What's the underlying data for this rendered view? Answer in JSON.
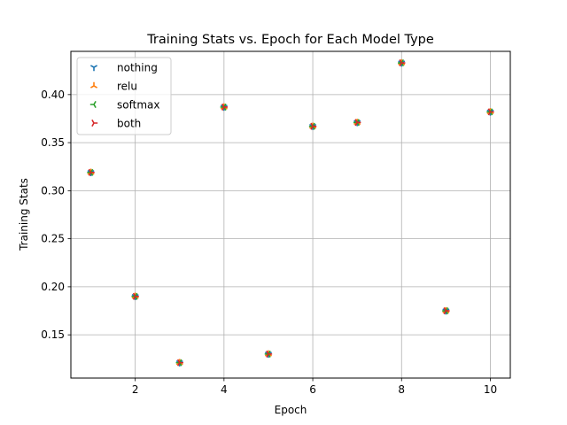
{
  "chart_data": {
    "type": "scatter",
    "title": "Training Stats vs. Epoch for Each Model Type",
    "xlabel": "Epoch",
    "ylabel": "Training Stats",
    "xlim": [
      0.55,
      10.45
    ],
    "ylim": [
      0.105,
      0.445
    ],
    "xticks": [
      2,
      4,
      6,
      8,
      10
    ],
    "yticks": [
      0.15,
      0.2,
      0.25,
      0.3,
      0.35,
      0.4
    ],
    "ytick_labels": [
      "0.15",
      "0.20",
      "0.25",
      "0.30",
      "0.35",
      "0.40"
    ],
    "grid": true,
    "legend_position": "top-left",
    "x": [
      1,
      2,
      3,
      4,
      5,
      6,
      7,
      8,
      9,
      10
    ],
    "series": [
      {
        "name": "nothing",
        "marker": "tri_down",
        "color": "#1f77b4",
        "values": [
          0.319,
          0.19,
          0.121,
          0.387,
          0.13,
          0.367,
          0.371,
          0.433,
          0.175,
          0.382
        ]
      },
      {
        "name": "relu",
        "marker": "tri_up",
        "color": "#ff7f0e",
        "values": [
          0.319,
          0.19,
          0.121,
          0.387,
          0.13,
          0.367,
          0.371,
          0.433,
          0.175,
          0.382
        ]
      },
      {
        "name": "softmax",
        "marker": "tri_left",
        "color": "#2ca02c",
        "values": [
          0.319,
          0.19,
          0.121,
          0.387,
          0.13,
          0.367,
          0.371,
          0.433,
          0.175,
          0.382
        ]
      },
      {
        "name": "both",
        "marker": "tri_right",
        "color": "#d62728",
        "values": [
          0.319,
          0.19,
          0.121,
          0.387,
          0.13,
          0.367,
          0.371,
          0.433,
          0.175,
          0.382
        ]
      }
    ]
  }
}
